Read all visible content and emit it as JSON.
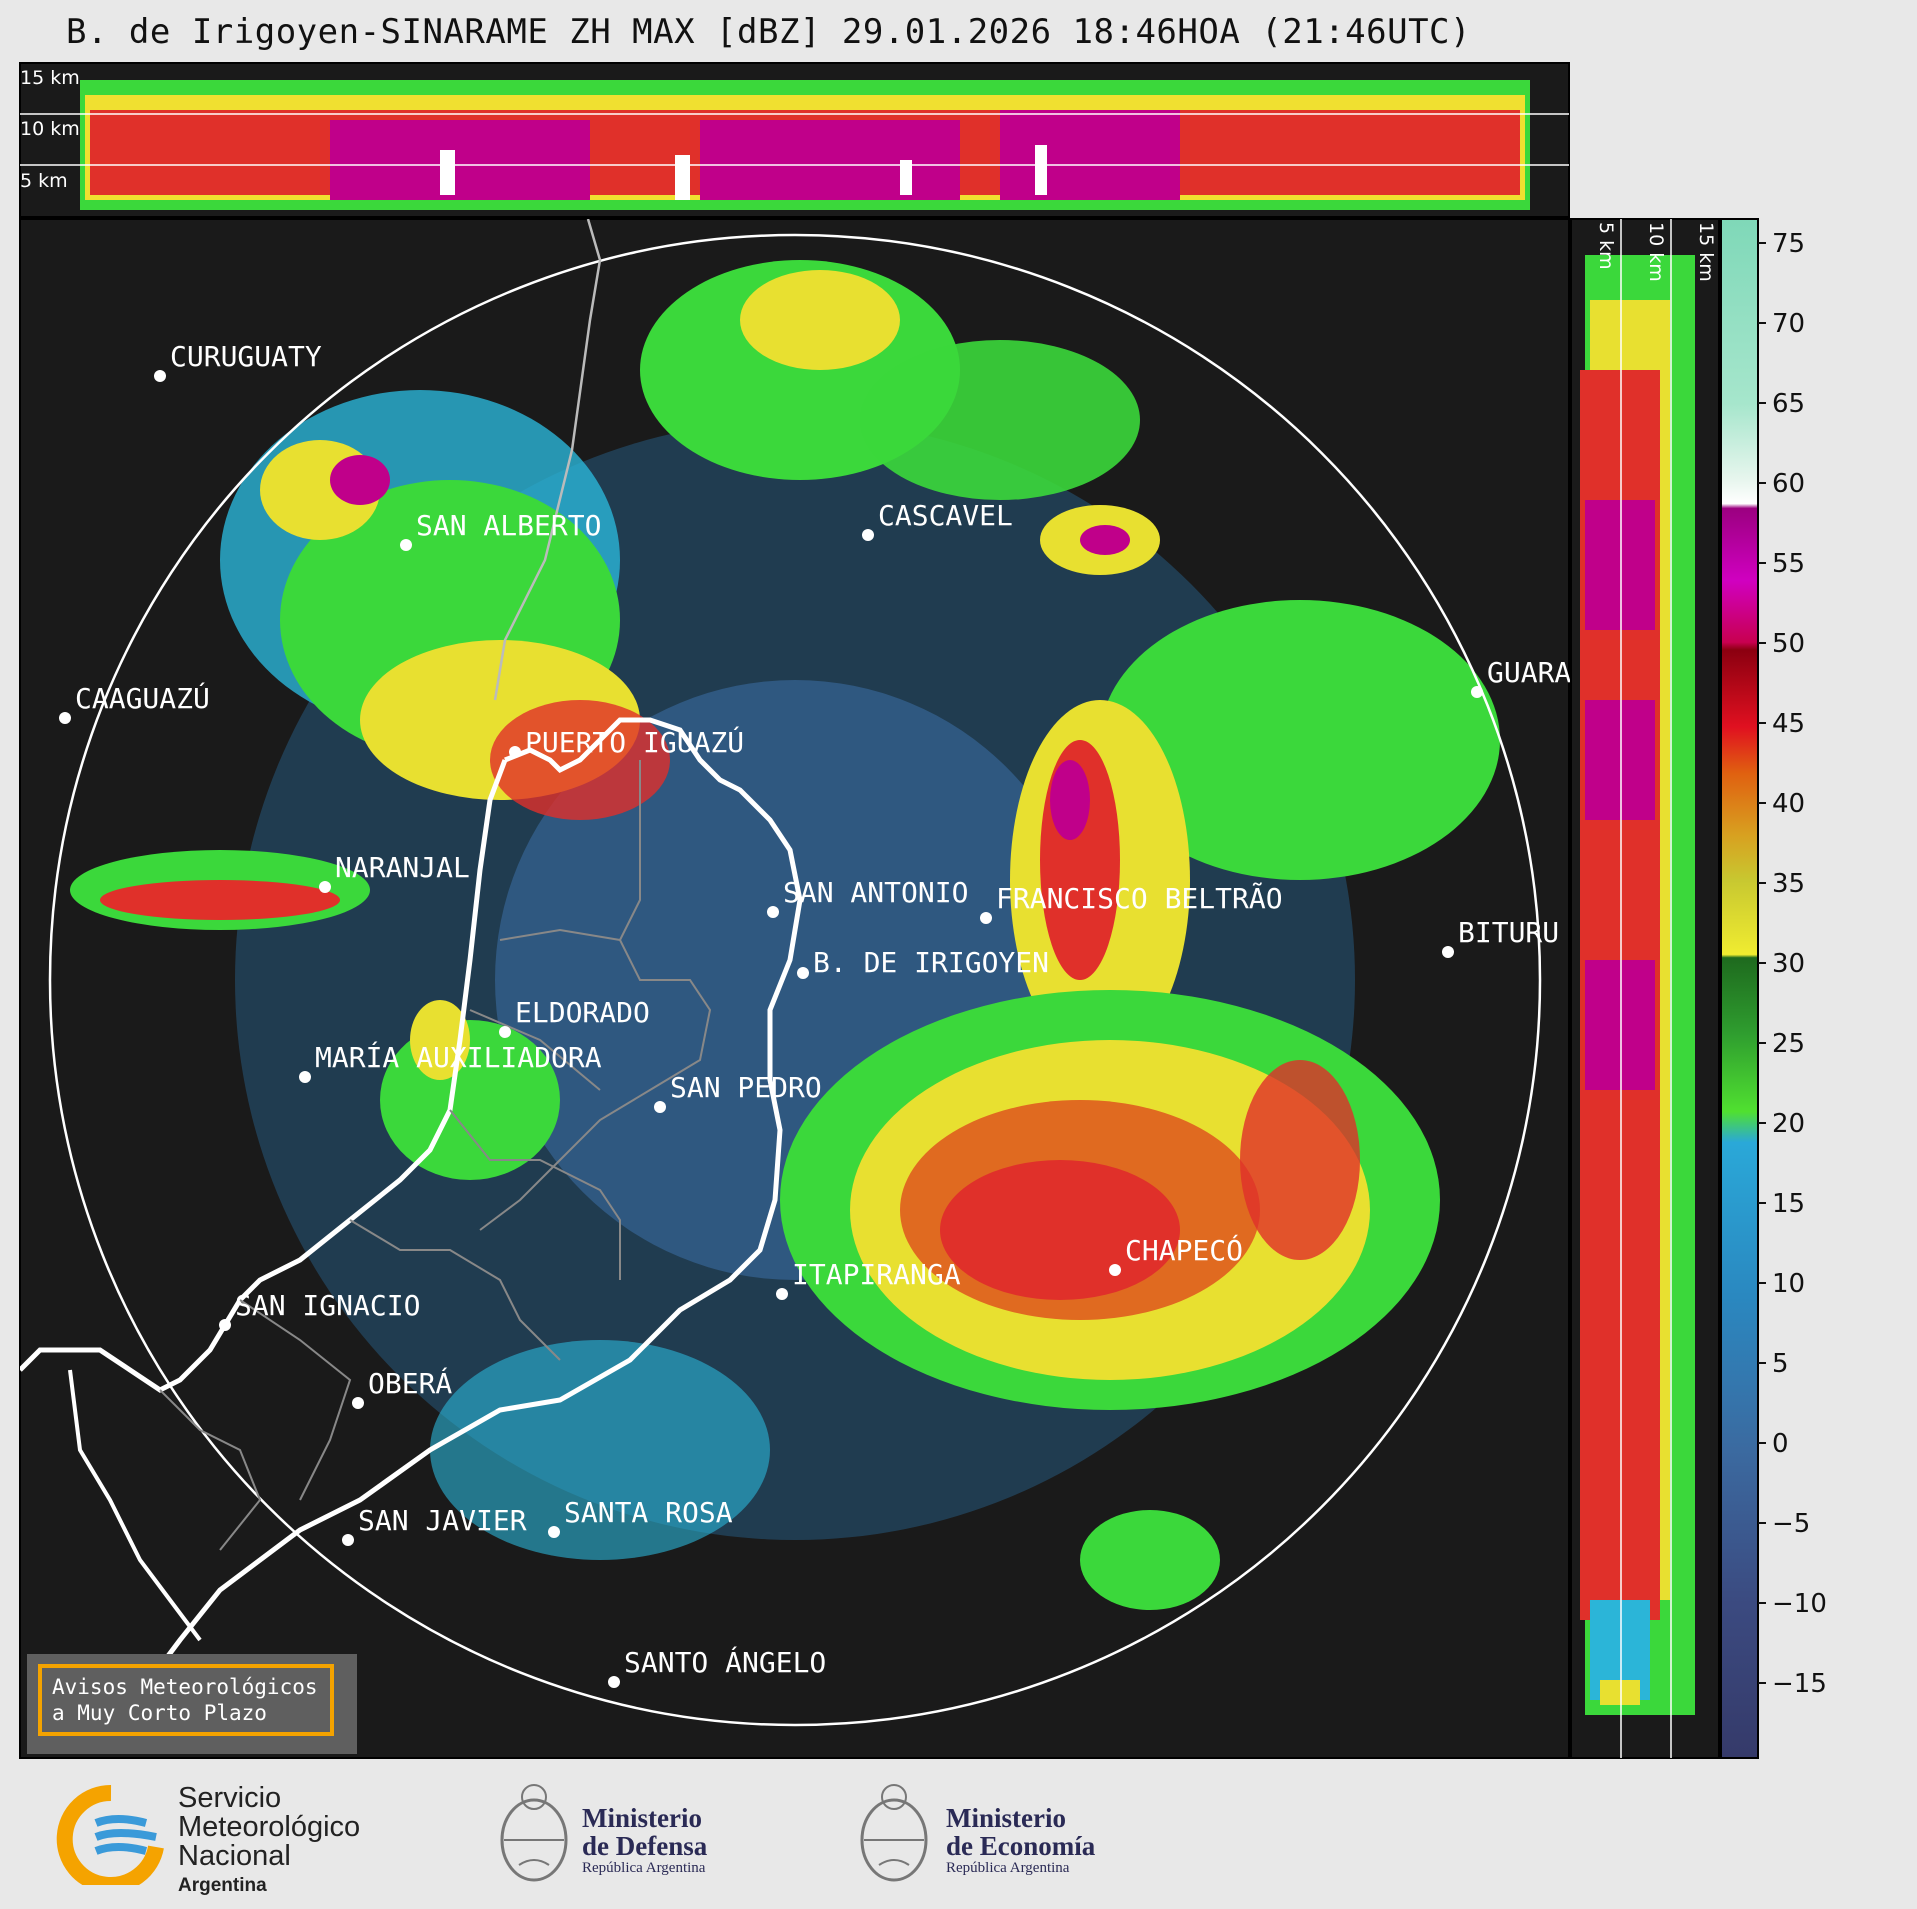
{
  "title": "B. de Irigoyen-SINARAME ZH MAX [dBZ] 29.01.2026 18:46HOA (21:46UTC)",
  "top_section": {
    "height_labels": [
      "15 km",
      "10 km",
      "5 km"
    ]
  },
  "right_section": {
    "height_labels": [
      "5 km",
      "10 km",
      "15 km"
    ]
  },
  "colorbar": {
    "ticks": [
      "75",
      "70",
      "65",
      "60",
      "55",
      "50",
      "45",
      "40",
      "35",
      "30",
      "25",
      "20",
      "15",
      "10",
      "5",
      "0",
      "−5",
      "−10",
      "−15"
    ]
  },
  "cities": [
    {
      "name": "CURUGUATY"
    },
    {
      "name": "SAN ALBERTO"
    },
    {
      "name": "CASCAVEL"
    },
    {
      "name": "CAAGUAZÚ"
    },
    {
      "name": "PUERTO IGUAZÚ"
    },
    {
      "name": "GUARA"
    },
    {
      "name": "NARANJAL"
    },
    {
      "name": "SAN ANTONIO"
    },
    {
      "name": "FRANCISCO BELTRÃO"
    },
    {
      "name": "B. DE IRIGOYEN"
    },
    {
      "name": "BITURU"
    },
    {
      "name": "ELDORADO"
    },
    {
      "name": "MARÍA AUXILIADORA"
    },
    {
      "name": "SAN PEDRO"
    },
    {
      "name": "CHAPECÓ"
    },
    {
      "name": "ITAPIRANGA"
    },
    {
      "name": "SAN IGNACIO"
    },
    {
      "name": "OBERÁ"
    },
    {
      "name": "SAN JAVIER"
    },
    {
      "name": "SANTA ROSA"
    },
    {
      "name": "SANTO ÁNGELO"
    }
  ],
  "warning_box": {
    "line1": "Avisos Meteorológicos",
    "line2": "a Muy Corto Plazo"
  },
  "logos": {
    "smn": {
      "line1": "Servicio",
      "line2": "Meteorológico",
      "line3": "Nacional",
      "line4": "Argentina"
    },
    "defensa": {
      "line1": "Ministerio",
      "line2": "de Defensa",
      "line3": "República Argentina"
    },
    "economia": {
      "line1": "Ministerio",
      "line2": "de Economía",
      "line3": "República Argentina"
    }
  },
  "colors": {
    "panel_bg": "#1a1a1a",
    "page_bg": "#e8e8e8",
    "warning_border": "#f4a300",
    "smn_orange": "#f5a300",
    "smn_blue": "#3a9ad9"
  }
}
